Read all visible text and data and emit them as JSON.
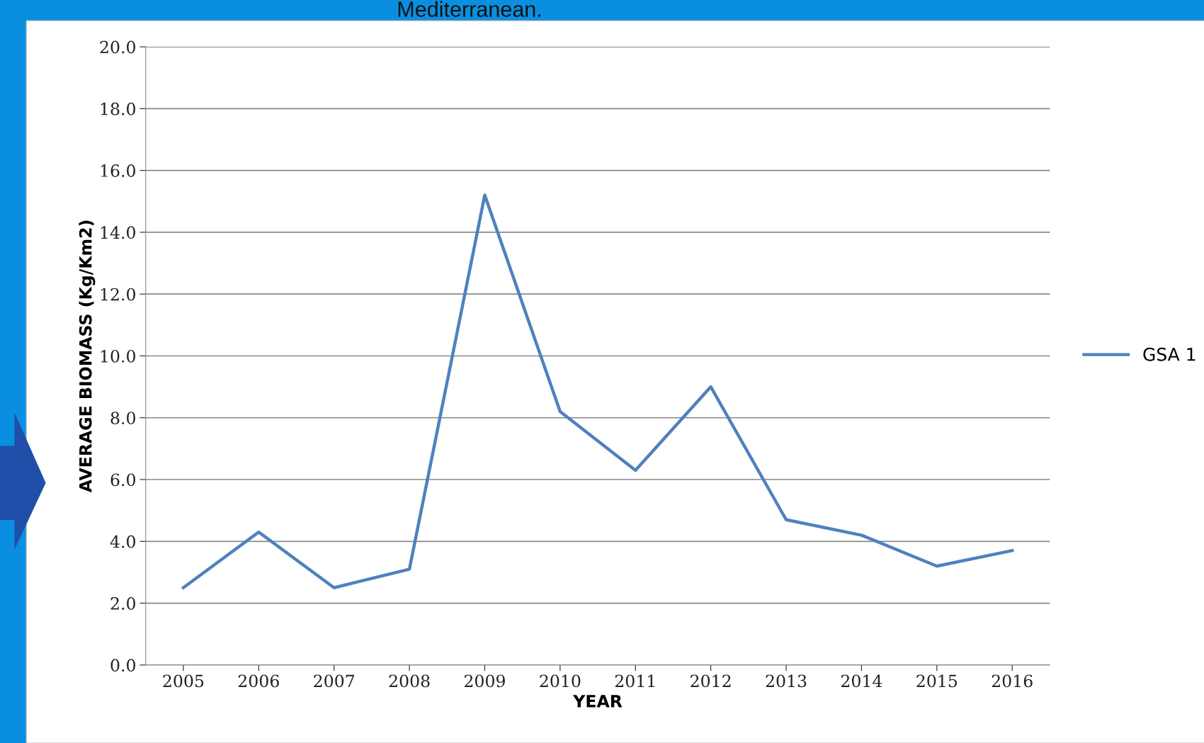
{
  "chart_data": {
    "type": "line",
    "title": "Mediterranean.",
    "xlabel": "YEAR",
    "ylabel": "AVERAGE BIOMASS (Kg/Km2)",
    "categories": [
      "2005",
      "2006",
      "2007",
      "2008",
      "2009",
      "2010",
      "2011",
      "2012",
      "2013",
      "2014",
      "2015",
      "2016"
    ],
    "series": [
      {
        "name": "GSA 1",
        "color": "#4f81bd",
        "values": [
          2.5,
          4.3,
          2.5,
          3.1,
          15.2,
          8.2,
          6.3,
          9.0,
          4.7,
          4.2,
          3.2,
          3.7
        ]
      }
    ],
    "ylim": [
      0,
      20
    ],
    "yticks": [
      {
        "value": 0,
        "label": "0.0"
      },
      {
        "value": 2,
        "label": "2.0"
      },
      {
        "value": 4,
        "label": "4.0"
      },
      {
        "value": 6,
        "label": "6.0"
      },
      {
        "value": 8,
        "label": "8.0"
      },
      {
        "value": 10,
        "label": "10.0"
      },
      {
        "value": 12,
        "label": "12.0"
      },
      {
        "value": 14,
        "label": "14.0"
      },
      {
        "value": 16,
        "label": "16.0"
      },
      {
        "value": 18,
        "label": "18.0"
      },
      {
        "value": 20,
        "label": "20.0"
      }
    ],
    "grid": "y",
    "legend": "right",
    "marker": "none",
    "line_style": "solid"
  }
}
